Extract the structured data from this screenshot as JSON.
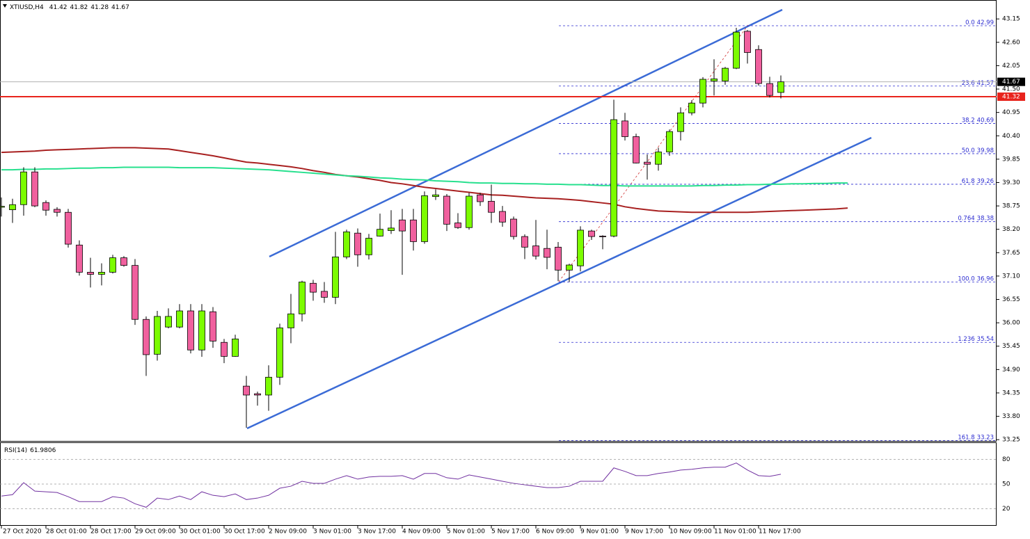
{
  "chart_data": [
    {
      "type": "candlestick",
      "title": "XTIUSD,H4",
      "categories": [
        "27 Oct 2020",
        null,
        null,
        null,
        "28 Oct 01:00",
        null,
        null,
        null,
        "28 Oct 17:00",
        null,
        null,
        null,
        "29 Oct 09:00",
        null,
        null,
        null,
        "30 Oct 01:00",
        null,
        null,
        null,
        "30 Oct 17:00",
        null,
        null,
        null,
        "2 Nov 09:00",
        null,
        null,
        null,
        "3 Nov 01:00",
        null,
        null,
        null,
        "3 Nov 17:00",
        null,
        null,
        null,
        "4 Nov 09:00",
        null,
        null,
        null,
        "5 Nov 01:00",
        null,
        null,
        null,
        "5 Nov 17:00",
        null,
        null,
        null,
        "6 Nov 09:00",
        null,
        null,
        null,
        "9 Nov 01:00",
        null,
        null,
        null,
        "9 Nov 17:00",
        null,
        null,
        null,
        "10 Nov 09:00",
        null,
        null,
        null,
        "11 Nov 01:00",
        null,
        null,
        null,
        "11 Nov 17:00",
        null,
        null,
        null,
        null,
        null,
        null,
        null,
        null
      ],
      "open": [
        38.72,
        38.66,
        38.78,
        39.55,
        38.83,
        38.67,
        38.6,
        37.83,
        37.19,
        37.14,
        37.19,
        37.53,
        37.35,
        36.08,
        35.26,
        35.9,
        35.9,
        36.28,
        35.36,
        36.26,
        35.54,
        35.21,
        34.51,
        34.33,
        34.3,
        34.72,
        35.88,
        36.21,
        36.93,
        36.74,
        36.6,
        37.55,
        38.11,
        37.6,
        38.04,
        38.17,
        38.42,
        38.42,
        37.91,
        38.97,
        38.98,
        38.35,
        38.24,
        39.01,
        38.86,
        38.62,
        38.44,
        38.03,
        37.81,
        37.75,
        37.78,
        37.24,
        37.34,
        38.16,
        38.04,
        38.04,
        40.75,
        40.38,
        39.78,
        39.73,
        40.02,
        40.5,
        40.94,
        41.17,
        41.69,
        41.69,
        41.99,
        42.86,
        42.43,
        41.63,
        41.42,
        null,
        null,
        null,
        null,
        null,
        null
      ],
      "high": [
        38.95,
        38.92,
        39.66,
        39.66,
        38.88,
        38.72,
        38.68,
        37.94,
        37.53,
        37.4,
        37.6,
        37.57,
        37.5,
        36.15,
        36.28,
        36.34,
        36.44,
        36.44,
        36.44,
        36.37,
        35.62,
        35.72,
        34.75,
        34.38,
        35.0,
        35.98,
        36.68,
        36.99,
        37.01,
        36.96,
        38.14,
        38.19,
        38.22,
        38.09,
        38.57,
        38.65,
        38.68,
        38.68,
        39.09,
        39.14,
        39.03,
        38.58,
        39.06,
        39.06,
        39.25,
        38.75,
        38.5,
        38.08,
        38.42,
        38.19,
        37.9,
        37.39,
        38.27,
        38.19,
        38.06,
        41.25,
        40.94,
        40.45,
        39.96,
        40.12,
        40.55,
        41.07,
        41.24,
        41.78,
        42.2,
        42.02,
        42.94,
        42.89,
        42.53,
        41.79,
        41.82,
        null,
        null,
        null,
        null,
        null,
        null
      ],
      "low": [
        38.5,
        38.35,
        38.52,
        38.72,
        38.52,
        38.5,
        37.77,
        37.11,
        36.83,
        36.88,
        37.16,
        37.32,
        35.95,
        34.75,
        35.11,
        35.87,
        35.87,
        35.28,
        35.2,
        35.41,
        35.05,
        35.2,
        33.53,
        34.05,
        33.93,
        34.54,
        35.52,
        36.03,
        36.52,
        36.47,
        36.44,
        37.5,
        37.32,
        37.49,
        38.03,
        38.09,
        37.13,
        37.7,
        37.86,
        38.89,
        38.16,
        38.21,
        38.19,
        38.75,
        38.35,
        38.26,
        37.96,
        37.5,
        37.49,
        37.26,
        36.98,
        36.96,
        37.21,
        37.95,
        37.73,
        38.01,
        40.29,
        39.75,
        39.37,
        39.58,
        39.93,
        40.29,
        40.88,
        41.07,
        41.35,
        41.6,
        41.97,
        42.1,
        41.58,
        41.3,
        41.28,
        null,
        null,
        null,
        null,
        null,
        null
      ],
      "close": [
        38.74,
        38.78,
        39.55,
        38.75,
        38.65,
        38.6,
        37.85,
        37.19,
        37.14,
        37.19,
        37.53,
        37.35,
        36.08,
        35.25,
        36.15,
        36.15,
        36.28,
        35.36,
        36.28,
        35.57,
        35.21,
        35.62,
        34.3,
        34.3,
        34.72,
        35.88,
        36.21,
        36.96,
        36.72,
        36.6,
        37.55,
        38.14,
        37.6,
        37.99,
        38.2,
        38.23,
        38.16,
        37.91,
        38.99,
        39.01,
        38.32,
        38.24,
        38.98,
        38.85,
        38.6,
        38.37,
        38.03,
        37.78,
        37.57,
        37.54,
        37.24,
        37.36,
        38.18,
        38.03,
        38.03,
        40.78,
        40.38,
        39.76,
        39.73,
        40.02,
        40.5,
        40.94,
        41.17,
        41.73,
        41.74,
        41.99,
        42.84,
        42.36,
        41.63,
        41.35,
        41.67,
        null,
        null,
        null,
        null,
        null,
        null
      ],
      "up_color": "#7cfc00",
      "down_color": "#f0609e",
      "series": [
        {
          "color": "#a82020",
          "values": [
            40.01,
            40.02,
            40.03,
            40.04,
            40.06,
            40.07,
            40.08,
            40.09,
            40.1,
            40.11,
            40.12,
            40.12,
            40.12,
            40.11,
            40.1,
            40.09,
            40.05,
            40.01,
            39.97,
            39.93,
            39.88,
            39.83,
            39.78,
            39.76,
            39.73,
            39.7,
            39.67,
            39.63,
            39.58,
            39.54,
            39.49,
            39.46,
            39.43,
            39.39,
            39.35,
            39.3,
            39.27,
            39.23,
            39.19,
            39.16,
            39.13,
            39.1,
            39.07,
            39.04,
            39.01,
            39.0,
            38.98,
            38.96,
            38.94,
            38.93,
            38.92,
            38.9,
            38.88,
            38.85,
            38.82,
            38.79,
            38.73,
            38.69,
            38.66,
            38.63,
            38.62,
            38.61,
            38.6,
            38.6,
            38.6,
            38.6,
            38.6,
            38.6,
            38.61,
            38.62,
            38.63,
            38.64,
            38.65,
            38.66,
            38.67,
            38.68,
            38.7
          ]
        },
        {
          "color": "#27e08e",
          "values": [
            39.6,
            39.6,
            39.61,
            39.61,
            39.62,
            39.62,
            39.63,
            39.64,
            39.64,
            39.65,
            39.65,
            39.66,
            39.66,
            39.66,
            39.66,
            39.66,
            39.65,
            39.65,
            39.65,
            39.65,
            39.64,
            39.63,
            39.62,
            39.61,
            39.6,
            39.58,
            39.56,
            39.54,
            39.52,
            39.5,
            39.48,
            39.46,
            39.45,
            39.43,
            39.41,
            39.4,
            39.38,
            39.37,
            39.36,
            39.34,
            39.33,
            39.32,
            39.3,
            39.29,
            39.29,
            39.28,
            39.28,
            39.27,
            39.27,
            39.26,
            39.26,
            39.25,
            39.25,
            39.24,
            39.23,
            39.23,
            39.22,
            39.22,
            39.22,
            39.22,
            39.22,
            39.22,
            39.22,
            39.23,
            39.23,
            39.24,
            39.24,
            39.25,
            39.25,
            39.26,
            39.26,
            39.27,
            39.27,
            39.28,
            39.28,
            39.29,
            39.29
          ]
        }
      ],
      "hline": 41.32,
      "fib_levels": {
        "levels": [
          "0.0",
          "23.6",
          "38.2",
          "50.0",
          "61.8",
          "0.764",
          "100.0",
          "1.236",
          "161.8"
        ],
        "prices": [
          42.99,
          41.57,
          40.69,
          39.98,
          39.26,
          38.38,
          36.96,
          35.54,
          33.23
        ]
      },
      "ylim": [
        33.22,
        43.53
      ],
      "yticks": [
        43.15,
        {
          "value": 42.6,
          "label": "42.60"
        },
        42.05,
        {
          "value": 41.5,
          "label": "41.50"
        },
        40.95,
        {
          "value": 40.4,
          "label": "40.40"
        },
        39.85,
        {
          "value": 39.3,
          "label": "39.30"
        },
        38.75,
        {
          "value": 38.2,
          "label": "38.20"
        },
        37.65,
        {
          "value": 37.1,
          "label": "37.10"
        },
        36.55,
        {
          "value": 36.0,
          "label": "36.00"
        },
        35.45,
        {
          "value": 34.9,
          "label": "34.90"
        },
        34.35,
        {
          "value": 33.8,
          "label": "33.80"
        },
        33.25
      ]
    },
    {
      "type": "line",
      "title": "RSI(14)",
      "color": "#7030a0",
      "values": [
        35.4,
        37.1,
        51.7,
        41.4,
        40.6,
        39.7,
        34.6,
        28.6,
        28.6,
        28.6,
        34.6,
        32.9,
        26,
        21.7,
        32.9,
        31.1,
        35.4,
        31.1,
        40.6,
        36.3,
        34.6,
        38.0,
        31.1,
        32.9,
        36.3,
        44.9,
        47.4,
        53.4,
        50.9,
        50.9,
        56.0,
        60.3,
        56.0,
        58.6,
        59.4,
        59.4,
        60.3,
        56.0,
        62.9,
        62.9,
        57.7,
        56.0,
        61.1,
        58.6,
        56.0,
        53.4,
        50.9,
        49.1,
        47.4,
        45.7,
        45.7,
        47.4,
        53.4,
        53.4,
        53.4,
        69.7,
        65.4,
        60.3,
        60.3,
        62.9,
        64.6,
        67.1,
        68.0,
        69.7,
        70.6,
        70.6,
        75.7,
        67.1,
        60.3,
        59.4,
        61.9806,
        null,
        null,
        null,
        null,
        null,
        null
      ],
      "ylim": [
        0,
        100
      ],
      "yticks": [
        80,
        50,
        20
      ]
    }
  ]
}
